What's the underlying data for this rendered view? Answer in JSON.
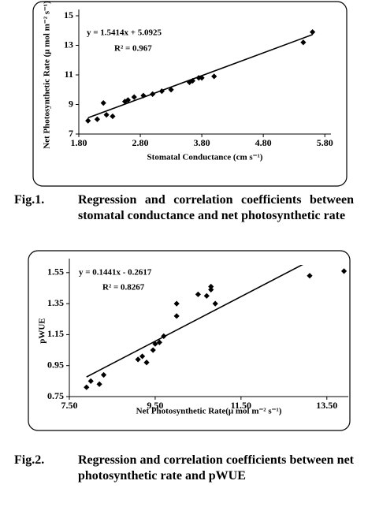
{
  "chart_data": [
    {
      "type": "scatter",
      "x_label": "Stomatal Conductance (cm s⁻¹)",
      "y_label": "Net Photosynthetic Rate (μ mol m⁻² s⁻¹)",
      "x": [
        1.95,
        2.1,
        2.2,
        2.25,
        2.35,
        2.55,
        2.6,
        2.7,
        2.85,
        3.0,
        3.15,
        3.3,
        3.6,
        3.65,
        3.75,
        3.8,
        4.0,
        5.45,
        5.6
      ],
      "values": [
        7.9,
        8.0,
        9.1,
        8.3,
        8.2,
        9.2,
        9.3,
        9.5,
        9.6,
        9.7,
        9.9,
        10.0,
        10.5,
        10.6,
        10.8,
        10.8,
        10.9,
        13.2,
        13.9
      ],
      "color": "#000000",
      "xlim": [
        1.8,
        5.9
      ],
      "ylim": [
        7,
        15
      ],
      "xticks": [
        {
          "value": 1.8,
          "label": "1.80"
        },
        {
          "value": 2.8,
          "label": "2.80"
        },
        {
          "value": 3.8,
          "label": "3.80"
        },
        {
          "value": 4.8,
          "label": "4.80"
        },
        {
          "value": 5.8,
          "label": "5.80"
        }
      ],
      "yticks": [
        7,
        9,
        11,
        13,
        15
      ],
      "fit": {
        "slope": 1.5414,
        "intercept": 5.0925,
        "label": "y = 1.5414x + 5.0925"
      },
      "r2_label": "R² = 0.967"
    },
    {
      "type": "scatter",
      "x_label": "Net Photosynthetic Rate(μ mol m⁻² s⁻¹)",
      "y_label": "pWUE",
      "x": [
        7.9,
        8.0,
        8.2,
        8.3,
        9.1,
        9.2,
        9.3,
        9.45,
        9.5,
        9.6,
        9.7,
        10.0,
        10.0,
        10.5,
        10.7,
        10.8,
        10.8,
        10.9,
        13.1,
        13.9
      ],
      "values": [
        0.81,
        0.85,
        0.83,
        0.89,
        0.99,
        1.01,
        0.97,
        1.05,
        1.09,
        1.1,
        1.14,
        1.27,
        1.35,
        1.41,
        1.4,
        1.44,
        1.46,
        1.35,
        1.53,
        1.56
      ],
      "color": "#000000",
      "xlim": [
        7.5,
        14.0
      ],
      "ylim": [
        0.75,
        1.6
      ],
      "xticks": [
        {
          "value": 7.5,
          "label": "7.50"
        },
        {
          "value": 9.5,
          "label": "9.50"
        },
        {
          "value": 11.5,
          "label": "11.50"
        },
        {
          "value": 13.5,
          "label": "13.50"
        }
      ],
      "yticks": [
        0.75,
        0.95,
        1.15,
        1.35,
        1.55
      ],
      "fit": {
        "slope": 0.1441,
        "intercept": -0.2617,
        "label": "y = 0.1441x - 0.2617"
      },
      "r2_label": "R² = 0.8267"
    }
  ],
  "captions": [
    {
      "number": "Fig.1.",
      "text": "Regression and correlation coefficients between stomatal conductance and net photosynthetic rate"
    },
    {
      "number": "Fig.2.",
      "text": "Regression and correlation coefficients between net photosynthetic rate and pWUE"
    }
  ]
}
